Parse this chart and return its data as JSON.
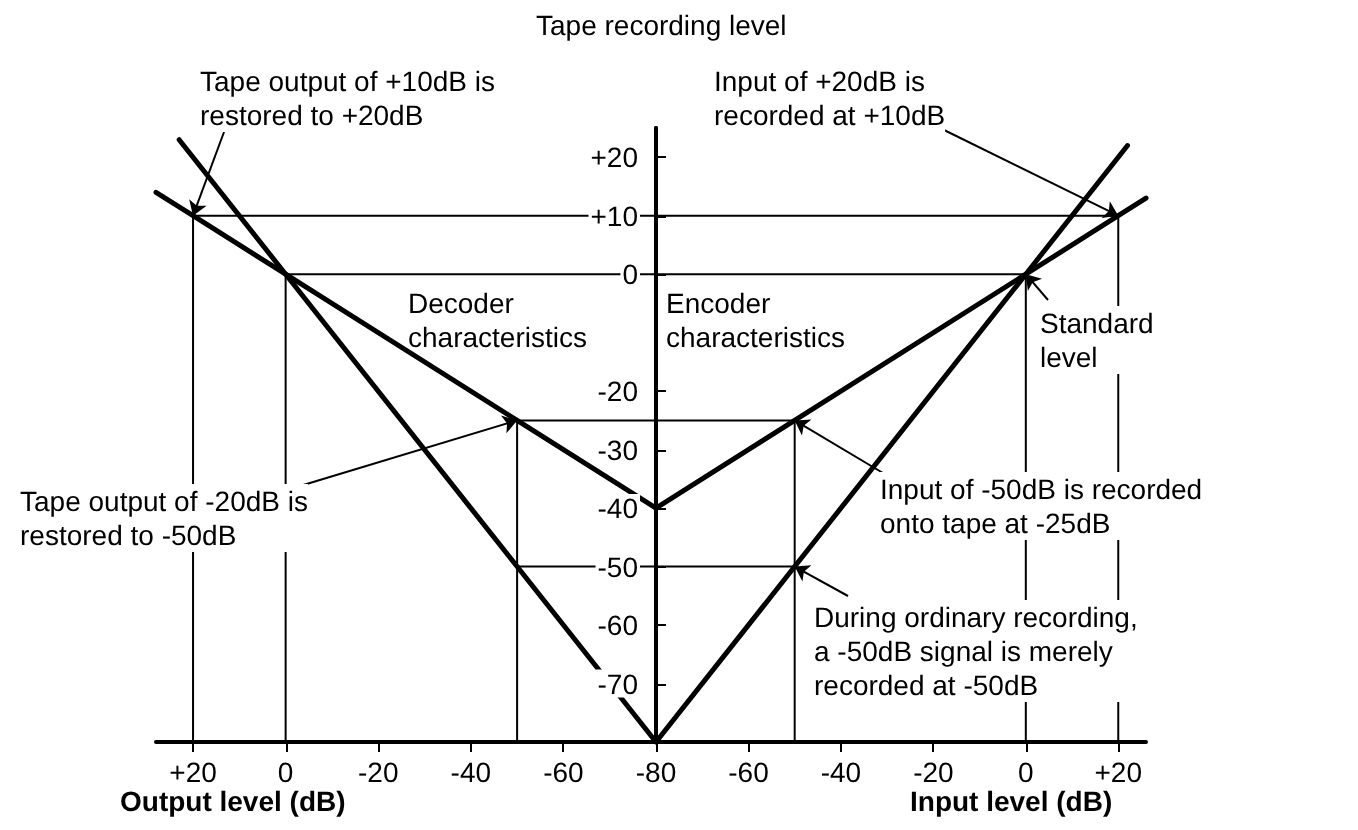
{
  "chart_data": [
    {
      "type": "line",
      "ylabel": "Tape recording level",
      "xlabel": "Output level (dB)",
      "series": [
        {
          "name": "Decoder characteristics",
          "color": "#000000",
          "x": [
            28,
            20,
            0,
            -50,
            -80
          ],
          "values": [
            14,
            10,
            0,
            -25,
            -40
          ]
        },
        {
          "color": "#000000",
          "x": [
            23,
            0,
            -50,
            -80
          ],
          "values": [
            23,
            0,
            -50,
            -80
          ]
        },
        {
          "color": "#000000",
          "x": [
            20,
            -80
          ],
          "values": [
            10,
            10
          ]
        },
        {
          "color": "#000000",
          "x": [
            0,
            -80
          ],
          "values": [
            0,
            0
          ]
        },
        {
          "color": "#000000",
          "x": [
            -50,
            -80
          ],
          "values": [
            -25,
            -25
          ]
        },
        {
          "color": "#000000",
          "x": [
            -50,
            -80
          ],
          "values": [
            -50,
            -50
          ]
        },
        {
          "color": "#000000",
          "x": [
            20,
            20
          ],
          "values": [
            10,
            -80
          ]
        },
        {
          "color": "#000000",
          "x": [
            0,
            0
          ],
          "values": [
            0,
            -80
          ]
        },
        {
          "color": "#000000",
          "x": [
            -50,
            -50
          ],
          "values": [
            -25,
            -80
          ]
        }
      ],
      "xlim": [
        28,
        -80
      ],
      "xticks": [
        {
          "value": 20,
          "label": "+20"
        },
        0,
        -20,
        -40,
        -60,
        -80
      ],
      "ylim": [
        -80,
        25
      ],
      "yticks": [
        {
          "value": 20,
          "label": "+20"
        },
        {
          "value": 10,
          "label": "+10"
        },
        0,
        -20,
        -30,
        -40,
        -50,
        -60,
        -70
      ],
      "annotations": [
        {
          "text": "Tape output of +10dB is\nrestored to +20dB",
          "x": 20,
          "y": 10
        },
        {
          "text": "Tape output of -20dB is\nrestored to -50dB",
          "x": -50,
          "y": -25
        }
      ],
      "legend": false,
      "marker": "none",
      "line_style": "solid"
    },
    {
      "type": "line",
      "xlabel": "Input level (dB)",
      "series": [
        {
          "name": "Encoder characteristics",
          "color": "#000000",
          "x": [
            -80,
            -50,
            0,
            20,
            26
          ],
          "values": [
            -40,
            -25,
            0,
            10,
            13
          ]
        },
        {
          "color": "#000000",
          "x": [
            -80,
            -50,
            0,
            22
          ],
          "values": [
            -80,
            -50,
            0,
            22
          ]
        },
        {
          "color": "#000000",
          "x": [
            -80,
            20
          ],
          "values": [
            10,
            10
          ]
        },
        {
          "color": "#000000",
          "x": [
            -80,
            0
          ],
          "values": [
            0,
            0
          ]
        },
        {
          "color": "#000000",
          "x": [
            -80,
            -50
          ],
          "values": [
            -25,
            -25
          ]
        },
        {
          "color": "#000000",
          "x": [
            -80,
            -50
          ],
          "values": [
            -50,
            -50
          ]
        },
        {
          "color": "#000000",
          "x": [
            20,
            20
          ],
          "values": [
            10,
            -80
          ]
        },
        {
          "color": "#000000",
          "x": [
            0,
            0
          ],
          "values": [
            0,
            -80
          ]
        },
        {
          "color": "#000000",
          "x": [
            -50,
            -50
          ],
          "values": [
            -25,
            -80
          ]
        }
      ],
      "xlim": [
        -80,
        26
      ],
      "xticks": [
        -60,
        -40,
        -20,
        0,
        {
          "value": 20,
          "label": "+20"
        }
      ],
      "ylim": [
        -80,
        25
      ],
      "tick_labels": "x",
      "annotations": [
        {
          "text": "Input of +20dB is\nrecorded at +10dB",
          "x": 20,
          "y": 10
        },
        {
          "text": "Standard\nlevel",
          "x": 0,
          "y": 0
        },
        {
          "text": "Input of -50dB is recorded\nonto tape at -25dB",
          "x": -50,
          "y": -25
        },
        {
          "text": "During ordinary recording,\na -50dB signal is merely\nrecorded at -50dB",
          "x": -50,
          "y": -50
        }
      ],
      "legend": false,
      "marker": "none",
      "line_style": "solid"
    }
  ]
}
